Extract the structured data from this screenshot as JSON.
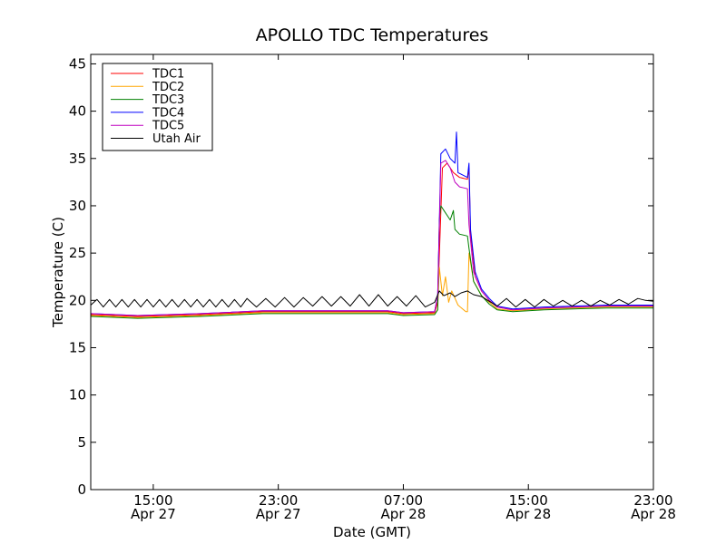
{
  "chart_data": {
    "type": "line",
    "title": "APOLLO TDC Temperatures",
    "xlabel": "Date (GMT)",
    "ylabel": "Temperature (C)",
    "ylim": [
      0,
      46
    ],
    "xlim_hours": [
      11,
      47
    ],
    "y_ticks": [
      0,
      5,
      10,
      15,
      20,
      25,
      30,
      35,
      40,
      45
    ],
    "x_ticks": [
      {
        "hour": 15,
        "label1": "15:00",
        "label2": "Apr 27"
      },
      {
        "hour": 23,
        "label1": "23:00",
        "label2": "Apr 27"
      },
      {
        "hour": 31,
        "label1": "07:00",
        "label2": "Apr 28"
      },
      {
        "hour": 39,
        "label1": "15:00",
        "label2": "Apr 28"
      },
      {
        "hour": 47,
        "label1": "23:00",
        "label2": "Apr 28"
      }
    ],
    "legend_position": "top-left",
    "series": [
      {
        "name": "TDC1",
        "color": "#ff0000",
        "points": [
          [
            11,
            18.5
          ],
          [
            14,
            18.3
          ],
          [
            18,
            18.5
          ],
          [
            22,
            18.8
          ],
          [
            26,
            18.8
          ],
          [
            30,
            18.8
          ],
          [
            31,
            18.6
          ],
          [
            33,
            18.7
          ],
          [
            33.2,
            19.8
          ],
          [
            33.5,
            34.0
          ],
          [
            33.8,
            34.5
          ],
          [
            34.2,
            33.5
          ],
          [
            34.6,
            33.0
          ],
          [
            35.1,
            32.8
          ],
          [
            35.2,
            34.0
          ],
          [
            35.3,
            27.0
          ],
          [
            35.6,
            22.5
          ],
          [
            36,
            21.0
          ],
          [
            36.5,
            20.0
          ],
          [
            37,
            19.3
          ],
          [
            38,
            19.0
          ],
          [
            40,
            19.2
          ],
          [
            44,
            19.4
          ],
          [
            47,
            19.4
          ]
        ]
      },
      {
        "name": "TDC2",
        "color": "#ffa500",
        "points": [
          [
            11,
            18.4
          ],
          [
            14,
            18.2
          ],
          [
            18,
            18.4
          ],
          [
            22,
            18.7
          ],
          [
            26,
            18.7
          ],
          [
            30,
            18.7
          ],
          [
            31,
            18.5
          ],
          [
            33,
            18.6
          ],
          [
            33.2,
            19.0
          ],
          [
            33.3,
            23.5
          ],
          [
            33.5,
            20.5
          ],
          [
            33.7,
            22.5
          ],
          [
            33.9,
            19.8
          ],
          [
            34.1,
            21.0
          ],
          [
            34.5,
            19.5
          ],
          [
            35,
            18.8
          ],
          [
            35.1,
            18.8
          ],
          [
            35.2,
            25.0
          ],
          [
            35.5,
            22.0
          ],
          [
            36,
            20.5
          ],
          [
            36.5,
            19.8
          ],
          [
            37,
            19.1
          ],
          [
            38,
            18.9
          ],
          [
            40,
            19.1
          ],
          [
            44,
            19.3
          ],
          [
            47,
            19.3
          ]
        ]
      },
      {
        "name": "TDC3",
        "color": "#008000",
        "points": [
          [
            11,
            18.3
          ],
          [
            14,
            18.1
          ],
          [
            18,
            18.3
          ],
          [
            22,
            18.6
          ],
          [
            26,
            18.6
          ],
          [
            30,
            18.6
          ],
          [
            31,
            18.4
          ],
          [
            33,
            18.5
          ],
          [
            33.2,
            19.0
          ],
          [
            33.3,
            28.5
          ],
          [
            33.4,
            30.0
          ],
          [
            33.6,
            29.5
          ],
          [
            34.0,
            28.5
          ],
          [
            34.2,
            29.5
          ],
          [
            34.3,
            27.5
          ],
          [
            34.6,
            27.0
          ],
          [
            35.1,
            26.8
          ],
          [
            35.2,
            25.5
          ],
          [
            35.5,
            22.0
          ],
          [
            36,
            20.5
          ],
          [
            36.5,
            19.6
          ],
          [
            37,
            19.0
          ],
          [
            38,
            18.8
          ],
          [
            40,
            19.0
          ],
          [
            44,
            19.2
          ],
          [
            47,
            19.2
          ]
        ]
      },
      {
        "name": "TDC4",
        "color": "#0000ff",
        "points": [
          [
            11,
            18.6
          ],
          [
            14,
            18.4
          ],
          [
            18,
            18.6
          ],
          [
            22,
            18.9
          ],
          [
            26,
            18.9
          ],
          [
            30,
            18.9
          ],
          [
            31,
            18.7
          ],
          [
            33,
            18.8
          ],
          [
            33.2,
            20.5
          ],
          [
            33.4,
            35.5
          ],
          [
            33.7,
            36.0
          ],
          [
            34.0,
            35.0
          ],
          [
            34.3,
            34.5
          ],
          [
            34.4,
            37.8
          ],
          [
            34.5,
            33.5
          ],
          [
            35.1,
            33.0
          ],
          [
            35.2,
            34.5
          ],
          [
            35.3,
            27.5
          ],
          [
            35.6,
            23.0
          ],
          [
            36,
            21.2
          ],
          [
            36.5,
            20.2
          ],
          [
            37,
            19.4
          ],
          [
            38,
            19.1
          ],
          [
            40,
            19.3
          ],
          [
            44,
            19.5
          ],
          [
            47,
            19.5
          ]
        ]
      },
      {
        "name": "TDC5",
        "color": "#bf00bf",
        "points": [
          [
            11,
            18.6
          ],
          [
            14,
            18.4
          ],
          [
            18,
            18.6
          ],
          [
            22,
            18.9
          ],
          [
            26,
            18.9
          ],
          [
            30,
            18.9
          ],
          [
            31,
            18.7
          ],
          [
            33,
            18.8
          ],
          [
            33.2,
            20.5
          ],
          [
            33.4,
            34.5
          ],
          [
            33.7,
            34.8
          ],
          [
            34.0,
            34.0
          ],
          [
            34.3,
            32.5
          ],
          [
            34.6,
            32.0
          ],
          [
            35.1,
            31.8
          ],
          [
            35.2,
            28.0
          ],
          [
            35.5,
            23.0
          ],
          [
            36,
            21.0
          ],
          [
            36.5,
            20.0
          ],
          [
            37,
            19.3
          ],
          [
            38,
            19.0
          ],
          [
            40,
            19.2
          ],
          [
            44,
            19.4
          ],
          [
            47,
            19.4
          ]
        ]
      },
      {
        "name": "Utah Air",
        "color": "#000000",
        "points": [
          [
            11,
            19.5
          ],
          [
            11.4,
            20.1
          ],
          [
            11.8,
            19.3
          ],
          [
            12.2,
            20.1
          ],
          [
            12.6,
            19.3
          ],
          [
            13,
            20.1
          ],
          [
            13.4,
            19.3
          ],
          [
            13.8,
            20.1
          ],
          [
            14.2,
            19.3
          ],
          [
            14.6,
            20.1
          ],
          [
            15,
            19.3
          ],
          [
            15.4,
            20.1
          ],
          [
            15.8,
            19.3
          ],
          [
            16.2,
            20.1
          ],
          [
            16.6,
            19.3
          ],
          [
            17,
            20.1
          ],
          [
            17.4,
            19.3
          ],
          [
            17.8,
            20.1
          ],
          [
            18.2,
            19.3
          ],
          [
            18.6,
            20.1
          ],
          [
            19,
            19.3
          ],
          [
            19.4,
            20.1
          ],
          [
            19.8,
            19.3
          ],
          [
            20.2,
            20.1
          ],
          [
            20.6,
            19.3
          ],
          [
            21,
            20.2
          ],
          [
            21.6,
            19.3
          ],
          [
            22.2,
            20.2
          ],
          [
            22.8,
            19.3
          ],
          [
            23.4,
            20.3
          ],
          [
            24,
            19.3
          ],
          [
            24.6,
            20.3
          ],
          [
            25.2,
            19.4
          ],
          [
            25.8,
            20.4
          ],
          [
            26.4,
            19.4
          ],
          [
            27,
            20.4
          ],
          [
            27.6,
            19.4
          ],
          [
            28.2,
            20.6
          ],
          [
            28.8,
            19.4
          ],
          [
            29.4,
            20.6
          ],
          [
            30,
            19.4
          ],
          [
            30.6,
            20.4
          ],
          [
            31.2,
            19.4
          ],
          [
            31.8,
            20.5
          ],
          [
            32.4,
            19.3
          ],
          [
            33,
            19.8
          ],
          [
            33.3,
            21.0
          ],
          [
            33.6,
            20.5
          ],
          [
            34.0,
            20.8
          ],
          [
            34.3,
            20.4
          ],
          [
            34.7,
            20.8
          ],
          [
            35.1,
            21.0
          ],
          [
            35.5,
            20.6
          ],
          [
            36,
            20.4
          ],
          [
            36.5,
            19.9
          ],
          [
            37,
            19.4
          ],
          [
            37.6,
            20.2
          ],
          [
            38.2,
            19.3
          ],
          [
            38.8,
            20.1
          ],
          [
            39.4,
            19.3
          ],
          [
            40,
            20.1
          ],
          [
            40.6,
            19.4
          ],
          [
            41.2,
            20.0
          ],
          [
            41.8,
            19.4
          ],
          [
            42.4,
            20.0
          ],
          [
            43,
            19.4
          ],
          [
            43.6,
            20.0
          ],
          [
            44.2,
            19.5
          ],
          [
            44.8,
            20.1
          ],
          [
            45.4,
            19.6
          ],
          [
            46,
            20.2
          ],
          [
            46.5,
            20.0
          ],
          [
            47,
            19.9
          ]
        ]
      }
    ]
  }
}
